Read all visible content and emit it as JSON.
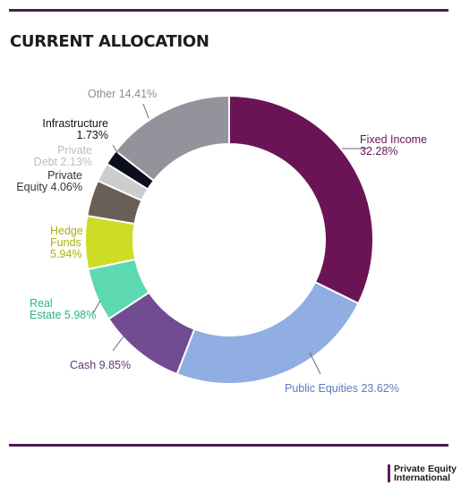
{
  "title": "CURRENT ALLOCATION",
  "logo": {
    "line1": "Private Equity",
    "line2": "International"
  },
  "chart_data": {
    "type": "donut",
    "title": "CURRENT ALLOCATION",
    "unit": "%",
    "slices": [
      {
        "name": "Fixed Income",
        "value": 32.28,
        "value_label": "32.28%",
        "color": "#6a1456"
      },
      {
        "name": "Public Equities",
        "value": 23.62,
        "value_label": "23.62%",
        "color": "#90aee2"
      },
      {
        "name": "Cash",
        "value": 9.85,
        "value_label": "9.85%",
        "color": "#724c93"
      },
      {
        "name": "Real Estate",
        "value": 5.98,
        "value_label": "5.98%",
        "color": "#5cd9b1"
      },
      {
        "name": "Hedge Funds",
        "value": 5.94,
        "value_label": "5.94%",
        "color": "#cddc25"
      },
      {
        "name": "Private Equity",
        "value": 4.06,
        "value_label": "4.06%",
        "color": "#6a5f57"
      },
      {
        "name": "Private Debt",
        "value": 2.13,
        "value_label": "2.13%",
        "color": "#cdcdcd"
      },
      {
        "name": "Infrastructure",
        "value": 1.73,
        "value_label": "1.73%",
        "color": "#0b0e1c"
      },
      {
        "name": "Other",
        "value": 14.41,
        "value_label": "14.41%",
        "color": "#96929b"
      }
    ]
  }
}
